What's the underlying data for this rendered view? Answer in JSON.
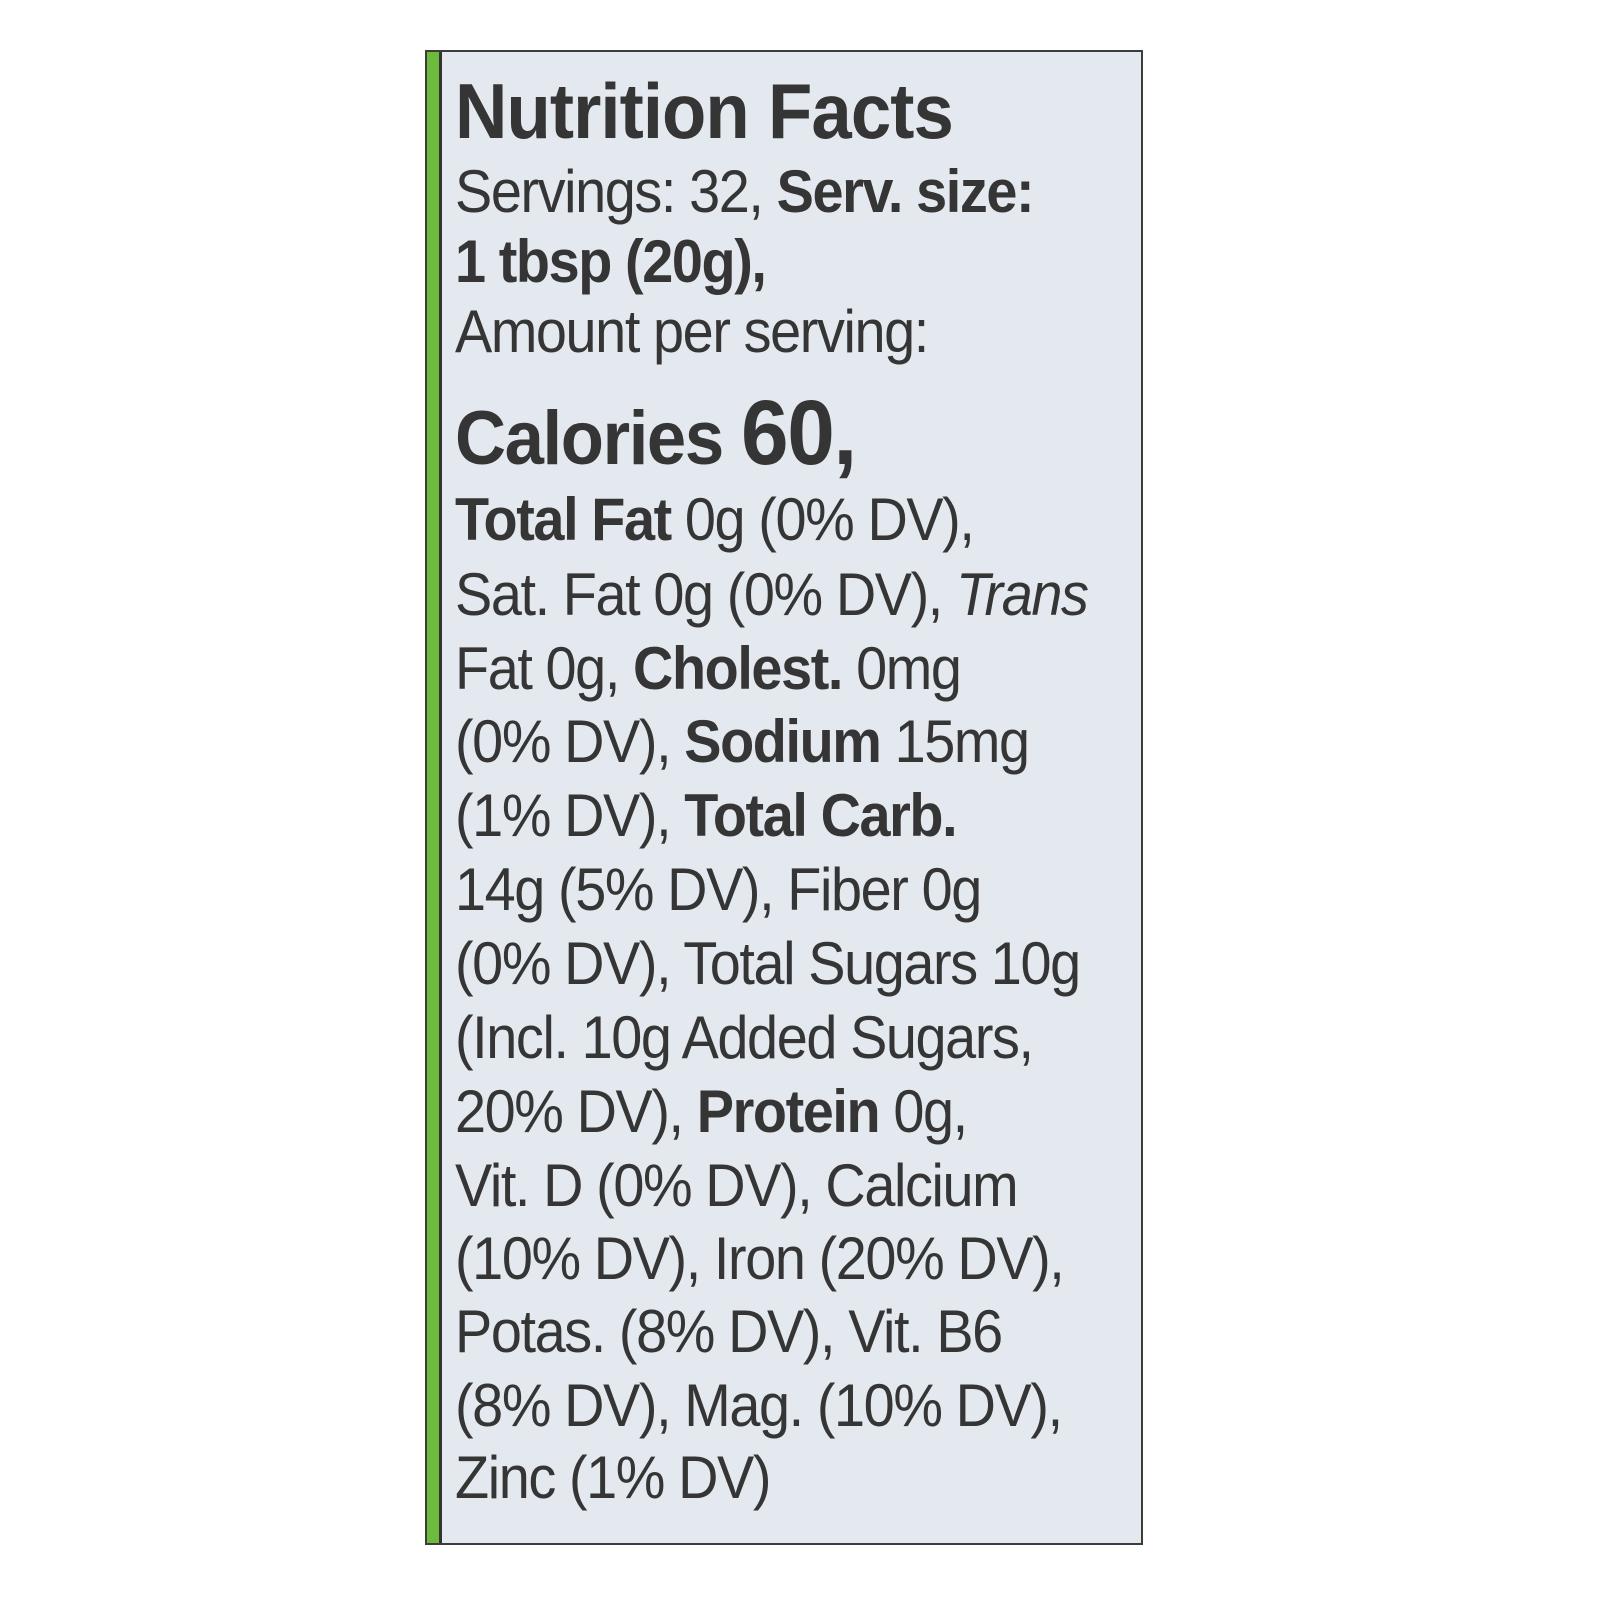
{
  "label": {
    "title": "Nutrition Facts",
    "servings": "Servings: 32, ",
    "serv_size_label": "Serv. size:",
    "serv_size_value": "1 tbsp (20g),",
    "amount_per_serving": "Amount per serving:",
    "calories_label": "Calories ",
    "calories_value": "60,",
    "l6": {
      "a": "Total Fat",
      "b": " 0g (0% DV),"
    },
    "l7": {
      "a": "Sat. Fat 0g (0% DV), ",
      "b": "Trans"
    },
    "l8": {
      "a": "Fat 0g, ",
      "b": "Cholest.",
      "c": " 0mg"
    },
    "l9": {
      "a": "(0% DV), ",
      "b": "Sodium",
      "c": " 15mg"
    },
    "l10": {
      "a": "(1% DV), ",
      "b": "Total Carb."
    },
    "l11": "14g (5% DV), Fiber 0g",
    "l12": "(0% DV), Total Sugars 10g",
    "l13": "(Incl. 10g Added Sugars,",
    "l14": {
      "a": "20% DV), ",
      "b": "Protein",
      "c": " 0g,"
    },
    "l15": "Vit. D (0% DV), Calcium",
    "l16": "(10% DV), Iron (20% DV),",
    "l17": "Potas. (8% DV), Vit. B6",
    "l18": "(8% DV), Mag. (10% DV),",
    "l19": "Zinc (1% DV)",
    "colors": {
      "background": "#e4e9f0",
      "text": "#353535",
      "side_strip": "#6dbb3c"
    }
  }
}
